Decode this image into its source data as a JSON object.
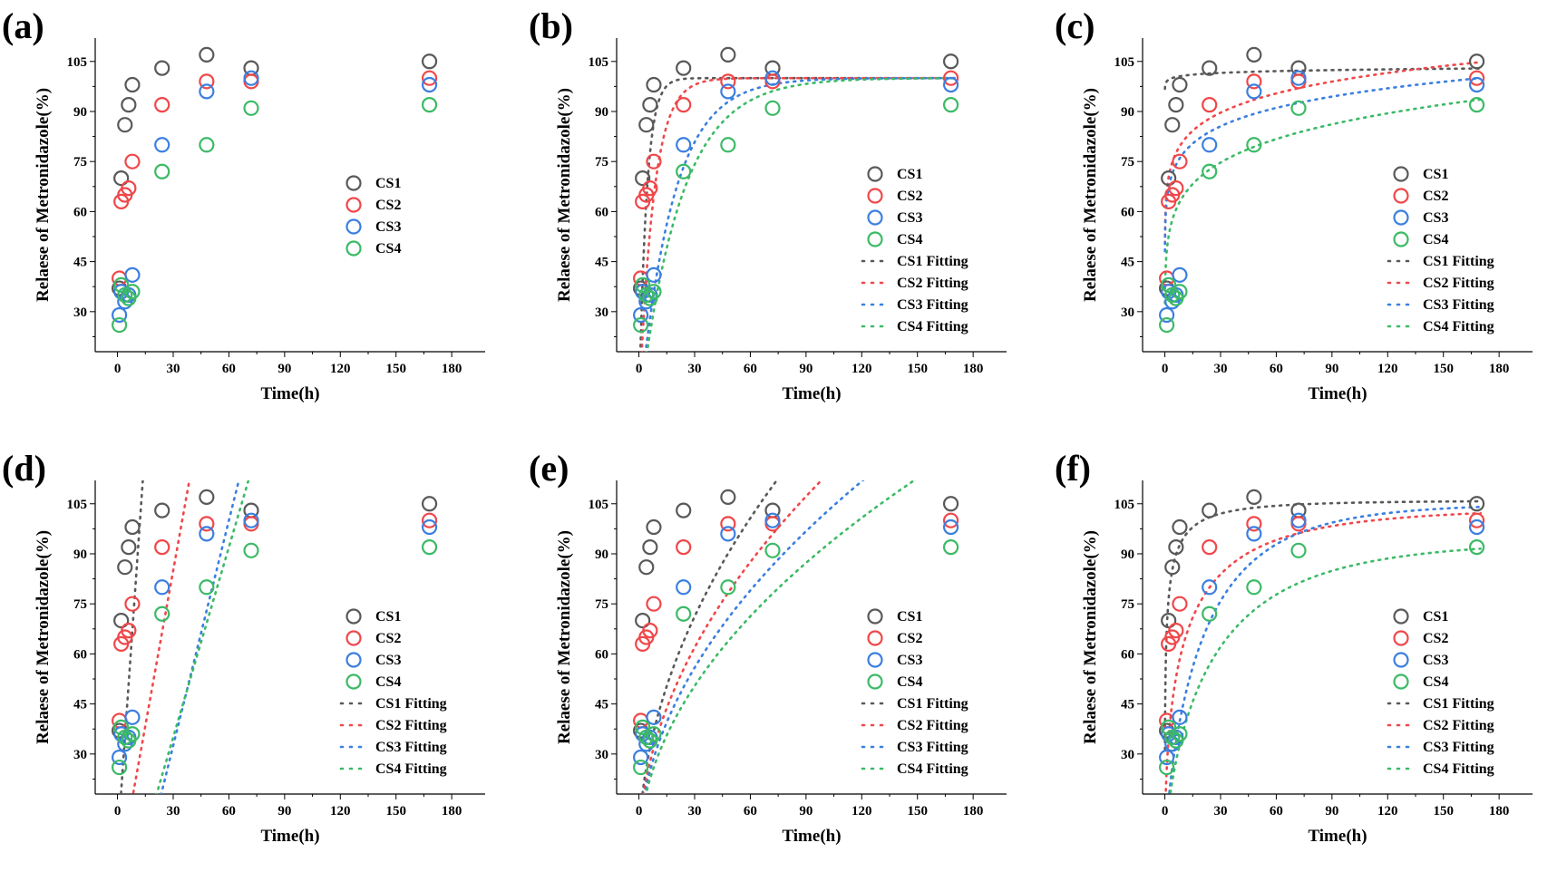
{
  "colors": {
    "CS1": "#595959",
    "CS2": "#f0474a",
    "CS3": "#3b7fe0",
    "CS4": "#3cba66",
    "axis": "#000000"
  },
  "chart_data": [
    {
      "panel": "(a)",
      "type": "scatter",
      "xlabel": "Time(h)",
      "ylabel": "Relaese of Metronidazole(%)",
      "xlim": [
        -12,
        198
      ],
      "ylim": [
        18,
        112
      ],
      "xticks": [
        0,
        30,
        60,
        90,
        120,
        150,
        180
      ],
      "yticks": [
        30,
        45,
        60,
        75,
        90,
        105
      ],
      "legend_position": "center-right",
      "series": [
        {
          "name": "CS1",
          "color_key": "CS1",
          "x": [
            1,
            2,
            4,
            6,
            8,
            24,
            48,
            72,
            168
          ],
          "y": [
            37,
            70,
            86,
            92,
            98,
            103,
            107,
            103,
            105
          ]
        },
        {
          "name": "CS2",
          "color_key": "CS2",
          "x": [
            1,
            2,
            4,
            6,
            8,
            24,
            48,
            72,
            168
          ],
          "y": [
            40,
            63,
            65,
            67,
            75,
            92,
            99,
            99,
            100
          ]
        },
        {
          "name": "CS3",
          "color_key": "CS3",
          "x": [
            1,
            2,
            4,
            6,
            8,
            24,
            48,
            72,
            168
          ],
          "y": [
            29,
            36,
            33,
            35,
            41,
            80,
            96,
            100,
            98
          ]
        },
        {
          "name": "CS4",
          "color_key": "CS4",
          "x": [
            1,
            2,
            4,
            6,
            8,
            24,
            48,
            72,
            168
          ],
          "y": [
            26,
            38,
            35,
            34,
            36,
            72,
            80,
            91,
            92
          ]
        }
      ],
      "fits": []
    },
    {
      "panel": "(b)",
      "type": "scatter",
      "xlabel": "Time(h)",
      "ylabel": "Relaese of Metronidazole(%)",
      "xlim": [
        -12,
        198
      ],
      "ylim": [
        18,
        112
      ],
      "xticks": [
        0,
        30,
        60,
        90,
        120,
        150,
        180
      ],
      "yticks": [
        30,
        45,
        60,
        75,
        90,
        105
      ],
      "legend_position": "bottom-right",
      "series": [
        {
          "name": "CS1",
          "color_key": "CS1",
          "x": [
            1,
            2,
            4,
            6,
            8,
            24,
            48,
            72,
            168
          ],
          "y": [
            37,
            70,
            86,
            92,
            98,
            103,
            107,
            103,
            105
          ]
        },
        {
          "name": "CS2",
          "color_key": "CS2",
          "x": [
            1,
            2,
            4,
            6,
            8,
            24,
            48,
            72,
            168
          ],
          "y": [
            40,
            63,
            65,
            67,
            75,
            92,
            99,
            99,
            100
          ]
        },
        {
          "name": "CS3",
          "color_key": "CS3",
          "x": [
            1,
            2,
            4,
            6,
            8,
            24,
            48,
            72,
            168
          ],
          "y": [
            29,
            36,
            33,
            35,
            41,
            80,
            96,
            100,
            98
          ]
        },
        {
          "name": "CS4",
          "color_key": "CS4",
          "x": [
            1,
            2,
            4,
            6,
            8,
            24,
            48,
            72,
            168
          ],
          "y": [
            26,
            38,
            35,
            34,
            36,
            72,
            80,
            91,
            92
          ]
        }
      ],
      "fits": [
        {
          "name": "CS1 Fitting",
          "color_key": "CS1",
          "model": "first_order",
          "params": [
            100,
            0.25
          ]
        },
        {
          "name": "CS2 Fitting",
          "color_key": "CS2",
          "model": "first_order",
          "params": [
            100,
            0.13
          ]
        },
        {
          "name": "CS3 Fitting",
          "color_key": "CS3",
          "model": "first_order",
          "params": [
            100,
            0.055
          ]
        },
        {
          "name": "CS4 Fitting",
          "color_key": "CS4",
          "model": "first_order",
          "params": [
            100,
            0.045
          ]
        }
      ]
    },
    {
      "panel": "(c)",
      "type": "scatter",
      "xlabel": "Time(h)",
      "ylabel": "Relaese of Metronidazole(%)",
      "xlim": [
        -12,
        198
      ],
      "ylim": [
        18,
        112
      ],
      "xticks": [
        0,
        30,
        60,
        90,
        120,
        150,
        180
      ],
      "yticks": [
        30,
        45,
        60,
        75,
        90,
        105
      ],
      "legend_position": "bottom-right",
      "series": [
        {
          "name": "CS1",
          "color_key": "CS1",
          "x": [
            1,
            2,
            4,
            6,
            8,
            24,
            48,
            72,
            168
          ],
          "y": [
            37,
            70,
            86,
            92,
            98,
            103,
            107,
            103,
            105
          ]
        },
        {
          "name": "CS2",
          "color_key": "CS2",
          "x": [
            1,
            2,
            4,
            6,
            8,
            24,
            48,
            72,
            168
          ],
          "y": [
            40,
            63,
            65,
            67,
            75,
            92,
            99,
            99,
            100
          ]
        },
        {
          "name": "CS3",
          "color_key": "CS3",
          "x": [
            1,
            2,
            4,
            6,
            8,
            24,
            48,
            72,
            168
          ],
          "y": [
            29,
            36,
            33,
            35,
            41,
            80,
            96,
            100,
            98
          ]
        },
        {
          "name": "CS4",
          "color_key": "CS4",
          "x": [
            1,
            2,
            4,
            6,
            8,
            24,
            48,
            72,
            168
          ],
          "y": [
            26,
            38,
            35,
            34,
            36,
            72,
            80,
            91,
            92
          ]
        }
      ],
      "fits": [
        {
          "name": "CS1 Fitting",
          "color_key": "CS1",
          "model": "power",
          "params": [
            99,
            0.0075
          ]
        },
        {
          "name": "CS2 Fitting",
          "color_key": "CS2",
          "model": "power",
          "params": [
            66,
            0.09
          ]
        },
        {
          "name": "CS3 Fitting",
          "color_key": "CS3",
          "model": "power",
          "params": [
            63,
            0.09
          ]
        },
        {
          "name": "CS4 Fitting",
          "color_key": "CS4",
          "model": "power",
          "params": [
            48,
            0.13
          ]
        }
      ]
    },
    {
      "panel": "(d)",
      "type": "scatter",
      "xlabel": "Time(h)",
      "ylabel": "Relaese of Metronidazole(%)",
      "xlim": [
        -12,
        198
      ],
      "ylim": [
        18,
        112
      ],
      "xticks": [
        0,
        30,
        60,
        90,
        120,
        150,
        180
      ],
      "yticks": [
        30,
        45,
        60,
        75,
        90,
        105
      ],
      "legend_position": "bottom-right",
      "series": [
        {
          "name": "CS1",
          "color_key": "CS1",
          "x": [
            1,
            2,
            4,
            6,
            8,
            24,
            48,
            72,
            168
          ],
          "y": [
            37,
            70,
            86,
            92,
            98,
            103,
            107,
            103,
            105
          ]
        },
        {
          "name": "CS2",
          "color_key": "CS2",
          "x": [
            1,
            2,
            4,
            6,
            8,
            24,
            48,
            72,
            168
          ],
          "y": [
            40,
            63,
            65,
            67,
            75,
            92,
            99,
            99,
            100
          ]
        },
        {
          "name": "CS3",
          "color_key": "CS3",
          "x": [
            1,
            2,
            4,
            6,
            8,
            24,
            48,
            72,
            168
          ],
          "y": [
            29,
            36,
            33,
            35,
            41,
            80,
            96,
            100,
            98
          ]
        },
        {
          "name": "CS4",
          "color_key": "CS4",
          "x": [
            1,
            2,
            4,
            6,
            8,
            24,
            48,
            72,
            168
          ],
          "y": [
            26,
            38,
            35,
            34,
            36,
            72,
            80,
            91,
            92
          ]
        }
      ],
      "fits": [
        {
          "name": "CS1 Fitting",
          "color_key": "CS1",
          "model": "linear",
          "params": [
            3,
            8.0
          ]
        },
        {
          "name": "CS2 Fitting",
          "color_key": "CS2",
          "model": "linear",
          "params": [
            -8,
            3.1
          ]
        },
        {
          "name": "CS3 Fitting",
          "color_key": "CS3",
          "model": "linear",
          "params": [
            -35,
            2.25
          ]
        },
        {
          "name": "CS4 Fitting",
          "color_key": "CS4",
          "model": "linear",
          "params": [
            -22,
            1.9
          ]
        }
      ]
    },
    {
      "panel": "(e)",
      "type": "scatter",
      "xlabel": "Time(h)",
      "ylabel": "Relaese of Metronidazole(%)",
      "xlim": [
        -12,
        198
      ],
      "ylim": [
        18,
        112
      ],
      "xticks": [
        0,
        30,
        60,
        90,
        120,
        150,
        180
      ],
      "yticks": [
        30,
        45,
        60,
        75,
        90,
        105
      ],
      "legend_position": "bottom-right",
      "series": [
        {
          "name": "CS1",
          "color_key": "CS1",
          "x": [
            1,
            2,
            4,
            6,
            8,
            24,
            48,
            72,
            168
          ],
          "y": [
            37,
            70,
            86,
            92,
            98,
            103,
            107,
            103,
            105
          ]
        },
        {
          "name": "CS2",
          "color_key": "CS2",
          "x": [
            1,
            2,
            4,
            6,
            8,
            24,
            48,
            72,
            168
          ],
          "y": [
            40,
            63,
            65,
            67,
            75,
            92,
            99,
            99,
            100
          ]
        },
        {
          "name": "CS3",
          "color_key": "CS3",
          "x": [
            1,
            2,
            4,
            6,
            8,
            24,
            48,
            72,
            168
          ],
          "y": [
            29,
            36,
            33,
            35,
            41,
            80,
            96,
            100,
            98
          ]
        },
        {
          "name": "CS4",
          "color_key": "CS4",
          "x": [
            1,
            2,
            4,
            6,
            8,
            24,
            48,
            72,
            168
          ],
          "y": [
            26,
            38,
            35,
            34,
            36,
            72,
            80,
            91,
            92
          ]
        }
      ],
      "fits": [
        {
          "name": "CS1 Fitting",
          "color_key": "CS1",
          "model": "sqrt",
          "params": [
            0,
            13.0
          ]
        },
        {
          "name": "CS2 Fitting",
          "color_key": "CS2",
          "model": "sqrt",
          "params": [
            0,
            11.3
          ]
        },
        {
          "name": "CS3 Fitting",
          "color_key": "CS3",
          "model": "sqrt",
          "params": [
            0,
            10.2
          ]
        },
        {
          "name": "CS4 Fitting",
          "color_key": "CS4",
          "model": "sqrt",
          "params": [
            0,
            9.2
          ]
        }
      ]
    },
    {
      "panel": "(f)",
      "type": "scatter",
      "xlabel": "Time(h)",
      "ylabel": "Relaese of Metronidazole(%)",
      "xlim": [
        -12,
        198
      ],
      "ylim": [
        18,
        112
      ],
      "xticks": [
        0,
        30,
        60,
        90,
        120,
        150,
        180
      ],
      "yticks": [
        30,
        45,
        60,
        75,
        90,
        105
      ],
      "legend_position": "bottom-right",
      "series": [
        {
          "name": "CS1",
          "color_key": "CS1",
          "x": [
            1,
            2,
            4,
            6,
            8,
            24,
            48,
            72,
            168
          ],
          "y": [
            37,
            70,
            86,
            92,
            98,
            103,
            107,
            103,
            105
          ]
        },
        {
          "name": "CS2",
          "color_key": "CS2",
          "x": [
            1,
            2,
            4,
            6,
            8,
            24,
            48,
            72,
            168
          ],
          "y": [
            40,
            63,
            65,
            67,
            75,
            92,
            99,
            99,
            100
          ]
        },
        {
          "name": "CS3",
          "color_key": "CS3",
          "x": [
            1,
            2,
            4,
            6,
            8,
            24,
            48,
            72,
            168
          ],
          "y": [
            29,
            36,
            33,
            35,
            41,
            80,
            96,
            100,
            98
          ]
        },
        {
          "name": "CS4",
          "color_key": "CS4",
          "x": [
            1,
            2,
            4,
            6,
            8,
            24,
            48,
            72,
            168
          ],
          "y": [
            26,
            38,
            35,
            34,
            36,
            72,
            80,
            91,
            92
          ]
        }
      ],
      "fits": [
        {
          "name": "CS1 Fitting",
          "color_key": "CS1",
          "model": "weibull",
          "params": [
            106,
            1.0,
            0.35
          ]
        },
        {
          "name": "CS2 Fitting",
          "color_key": "CS2",
          "model": "weibull",
          "params": [
            104,
            0.28,
            0.52
          ]
        },
        {
          "name": "CS3 Fitting",
          "color_key": "CS3",
          "model": "weibull",
          "params": [
            105,
            0.1,
            0.75
          ]
        },
        {
          "name": "CS4 Fitting",
          "color_key": "CS4",
          "model": "weibull",
          "params": [
            94,
            0.1,
            0.7
          ]
        }
      ]
    }
  ]
}
